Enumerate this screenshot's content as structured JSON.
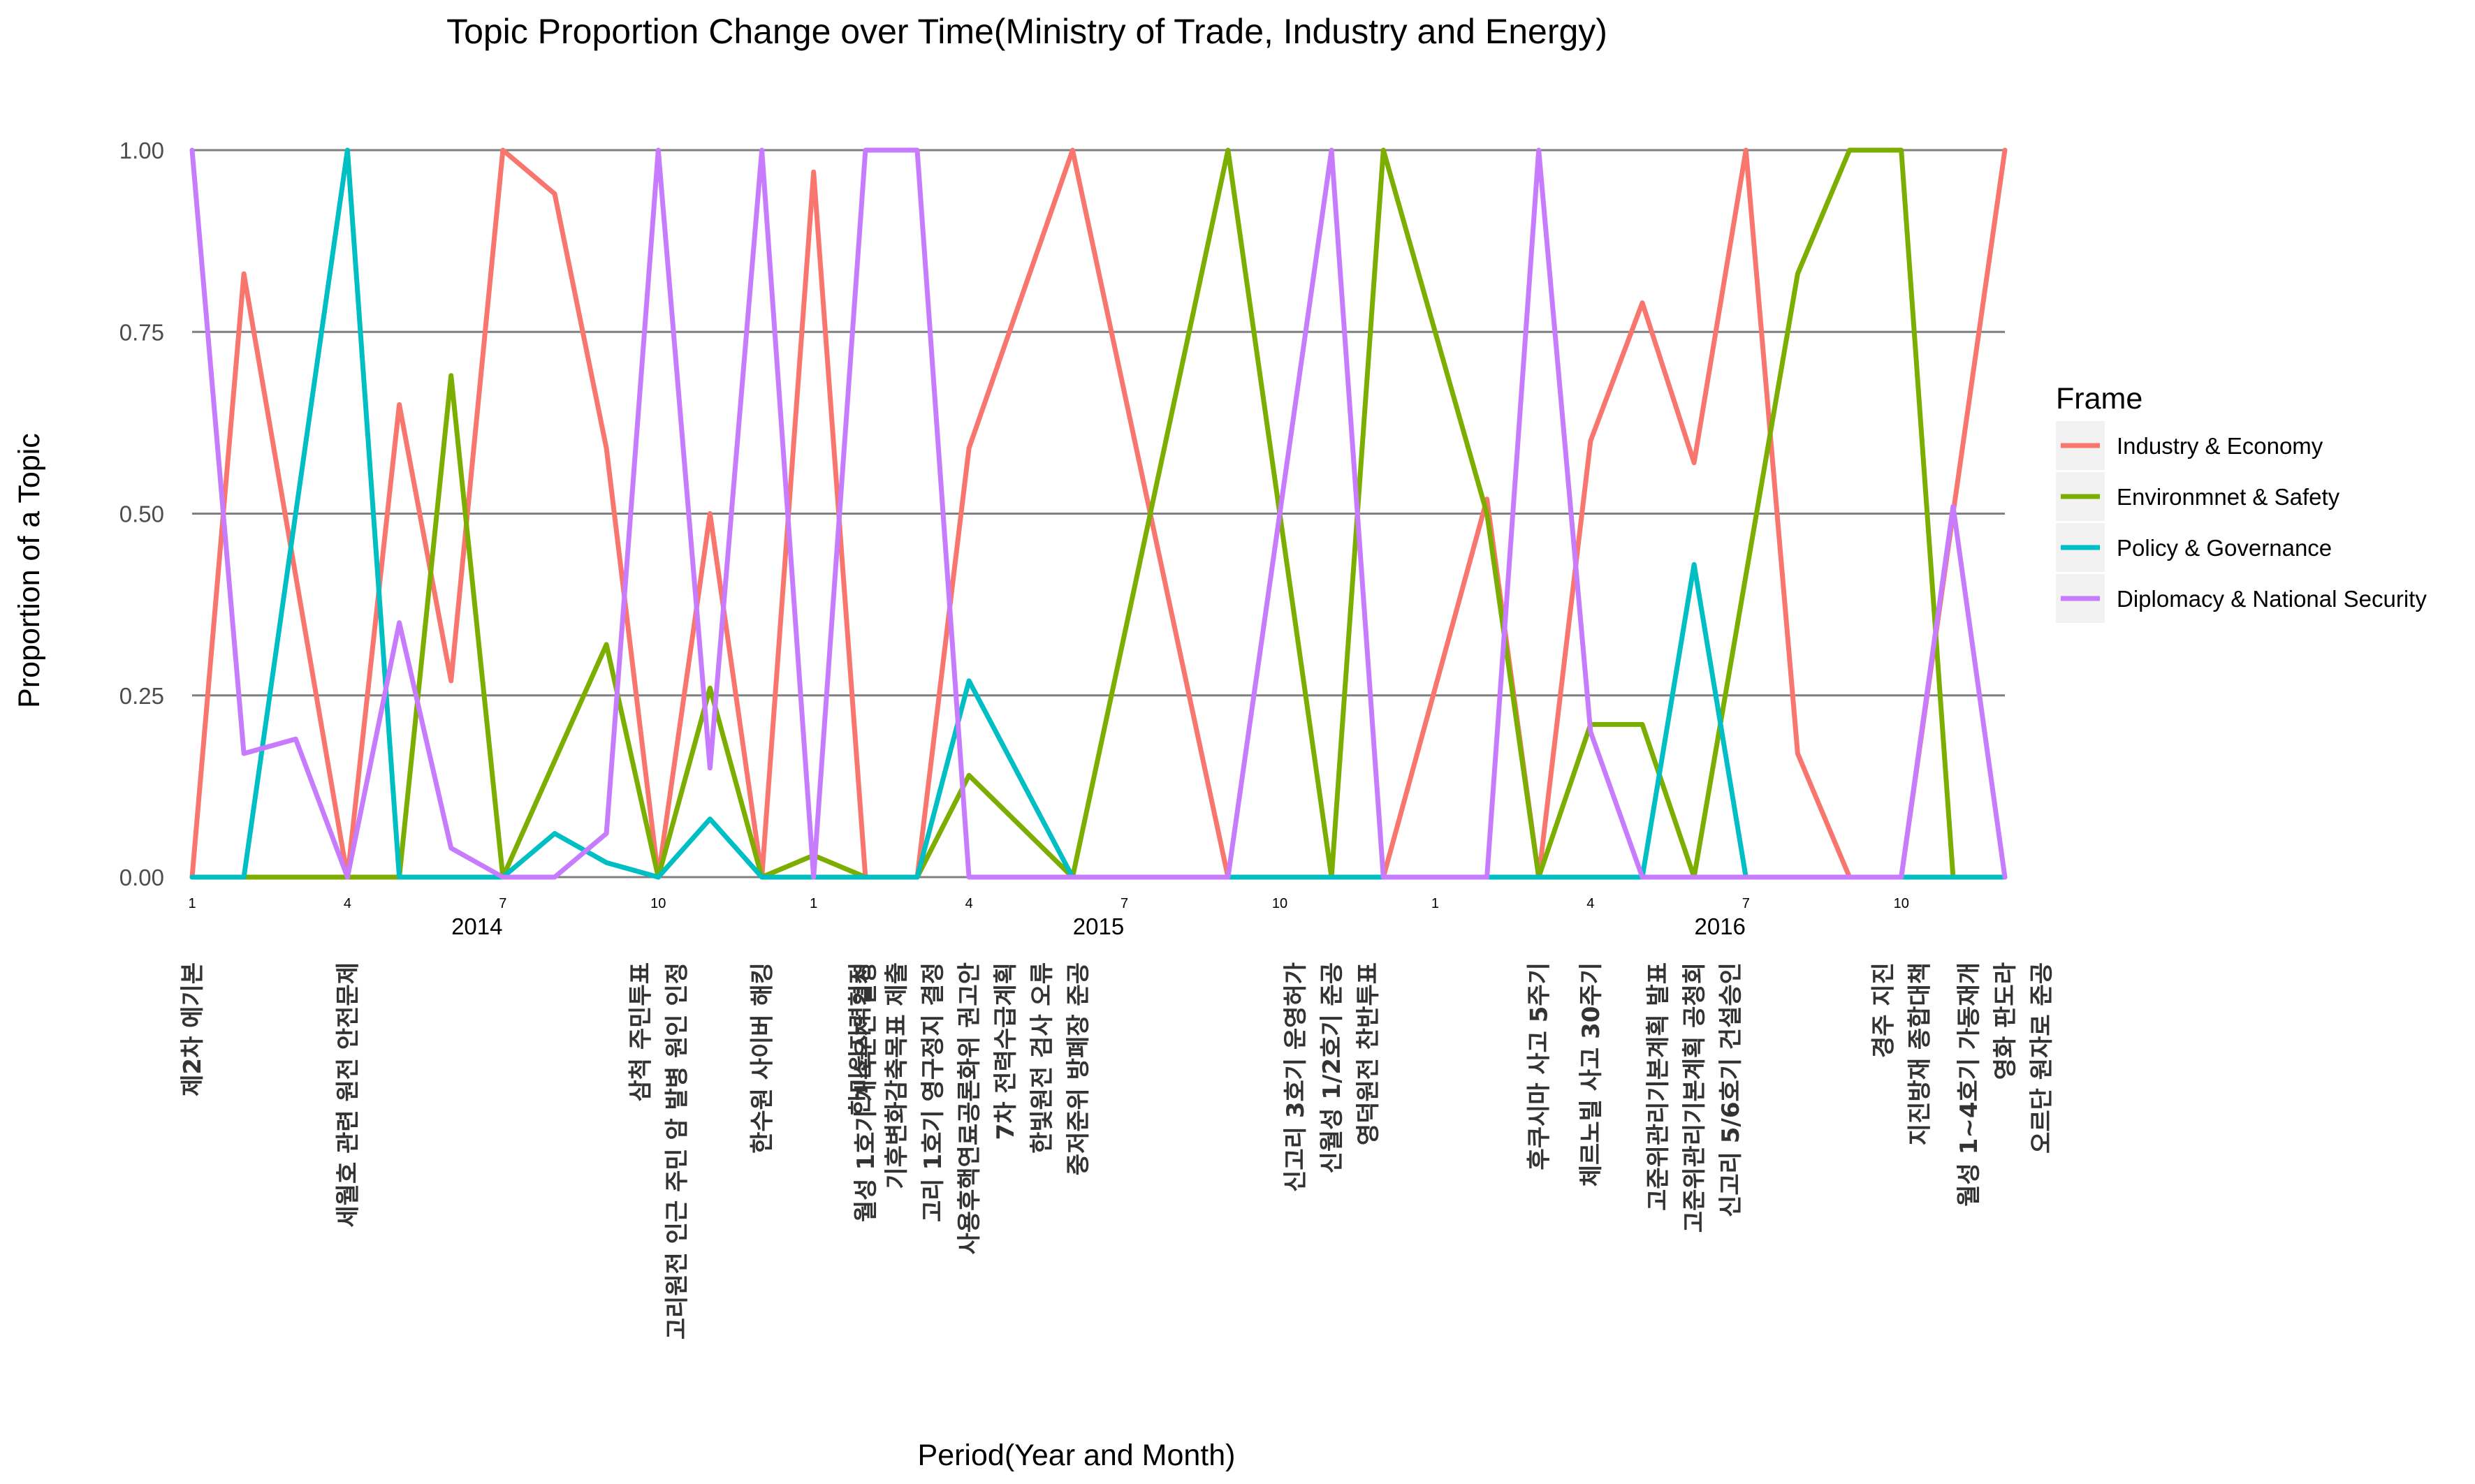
{
  "chart_data": {
    "type": "line",
    "title": "Topic Proportion Change over Time(Ministry of Trade, Industry and Energy)",
    "xlabel": "Period(Year and Month)",
    "ylabel": "Proportion of a Topic",
    "ylim": [
      0,
      1
    ],
    "yticks": [
      "0.00",
      "0.25",
      "0.50",
      "0.75",
      "1.00"
    ],
    "xticks": [
      "1",
      "4",
      "7",
      "10",
      "1",
      "4",
      "7",
      "10",
      "1",
      "4",
      "7",
      "10"
    ],
    "years": [
      "2014",
      "2015",
      "2016"
    ],
    "grid": "horizontal",
    "legend_position": "right",
    "legend_title": "Frame",
    "x": [
      1,
      2,
      3,
      4,
      5,
      6,
      7,
      8,
      9,
      10,
      11,
      12,
      13,
      14,
      15,
      16,
      17,
      18,
      19,
      20,
      21,
      22,
      23,
      24,
      25,
      26,
      27,
      28,
      29,
      30,
      31,
      32,
      33,
      34,
      35,
      36
    ],
    "series": [
      {
        "name": "Industry & Economy",
        "color": "#F8766D",
        "values": [
          0,
          0.83,
          null,
          0,
          0.65,
          0.27,
          1.0,
          0.94,
          0.59,
          0,
          0.5,
          0,
          0.97,
          0,
          0,
          0.59,
          null,
          1.0,
          null,
          null,
          0,
          null,
          null,
          0,
          null,
          0.52,
          0,
          0.6,
          0.79,
          0.57,
          1.0,
          0.17,
          0,
          0,
          null,
          1.0
        ]
      },
      {
        "name": "Environmnet & Safety",
        "color": "#7CAE00",
        "values": [
          0,
          0,
          0,
          0,
          0,
          0.69,
          0,
          null,
          0.32,
          0,
          0.26,
          0,
          0.03,
          0,
          0,
          0.14,
          null,
          0,
          null,
          null,
          1.0,
          null,
          0,
          1.0,
          null,
          0.5,
          0,
          0.21,
          0.21,
          0,
          null,
          0.83,
          1.0,
          1.0,
          0,
          0
        ]
      },
      {
        "name": "Policy & Governance",
        "color": "#00BFC4",
        "values": [
          0,
          0,
          null,
          1.0,
          0,
          0,
          0,
          0.06,
          0.02,
          0,
          0.08,
          0,
          0,
          0,
          0,
          0.27,
          null,
          0,
          null,
          null,
          0,
          null,
          0,
          0,
          null,
          0,
          0,
          0,
          0,
          0.43,
          0,
          0,
          0,
          0,
          0,
          0
        ]
      },
      {
        "name": "Diplomacy & National Security",
        "color": "#C77CFF",
        "values": [
          1.0,
          0.17,
          0.19,
          0,
          0.35,
          0.04,
          0,
          0,
          0.06,
          1.0,
          0.15,
          1.0,
          0,
          1.0,
          1.0,
          0,
          null,
          0,
          null,
          null,
          0,
          null,
          1.0,
          0,
          null,
          0,
          1.0,
          0.2,
          0,
          0,
          0,
          0,
          0,
          0,
          0.51,
          0
        ]
      }
    ],
    "events": [
      {
        "x": 1,
        "lines": [
          "제2차 에기본"
        ]
      },
      {
        "x": 4,
        "lines": [
          "세월호 관련 원전 안전문제"
        ]
      },
      {
        "x": 10,
        "lines": [
          "삼척 주민투표",
          "고리원전 인근 주민 암 발병 원인 인정"
        ]
      },
      {
        "x": 12,
        "lines": [
          "한수원 사이버 해킹"
        ]
      },
      {
        "x": 14,
        "lines": [
          "월성 1호기 계속운전 결정"
        ]
      },
      {
        "x": 16,
        "lines": [
          "한미원자력협정",
          "기후변화감축목표 제출",
          "고리 1호기 영구정지 결정",
          "사용후핵연료공론화위 권고안",
          "7차 전력수급계획",
          "한빛원전 검사 오류",
          "중저준위 방폐장 준공"
        ]
      },
      {
        "x": 23,
        "lines": [
          "신고리 3호기 운영허가",
          "신월성 1/2호기 준공",
          "영덕원전 찬반투표"
        ]
      },
      {
        "x": 27,
        "lines": [
          "후쿠시마 사고 5주기"
        ]
      },
      {
        "x": 28,
        "lines": [
          "체르노빌 사고 30주기"
        ]
      },
      {
        "x": 30,
        "lines": [
          "고준위관리기본계획 발표",
          "고준위관리기본계획 공청회",
          "신고리 5/6호기 건설승인"
        ]
      },
      {
        "x": 34,
        "lines": [
          "경주 지진",
          "지진방재 종합대책"
        ]
      },
      {
        "x": 36,
        "lines": [
          "월성 1~4호기 가동재개",
          "영화 판도라",
          "오르단 원자로 준공"
        ]
      }
    ]
  }
}
